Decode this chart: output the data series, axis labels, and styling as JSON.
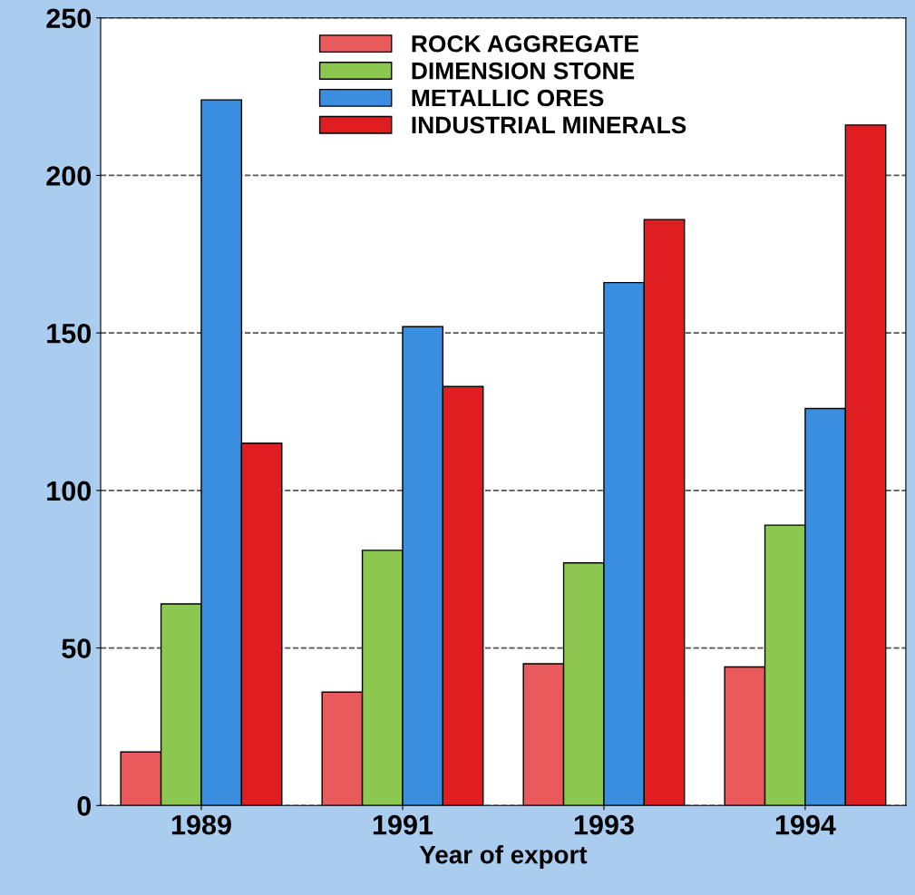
{
  "chart_data": {
    "type": "bar",
    "xlabel": "Year of export",
    "categories": [
      "1989",
      "1991",
      "1993",
      "1994"
    ],
    "series": [
      {
        "name": "ROCK AGGREGATE",
        "color": "#e85a5c",
        "values": [
          17,
          36,
          45,
          44
        ]
      },
      {
        "name": "DIMENSION STONE",
        "color": "#8cc850",
        "values": [
          64,
          81,
          77,
          89
        ]
      },
      {
        "name": "METALLIC ORES",
        "color": "#3a8ee0",
        "values": [
          224,
          152,
          166,
          126
        ]
      },
      {
        "name": "INDUSTRIAL MINERALS",
        "color": "#e01e22",
        "values": [
          115,
          133,
          186,
          216
        ]
      }
    ],
    "ylim": [
      0,
      250
    ],
    "yticks": [
      0,
      50,
      100,
      150,
      200,
      250
    ],
    "grid": "y",
    "legend": "top"
  }
}
